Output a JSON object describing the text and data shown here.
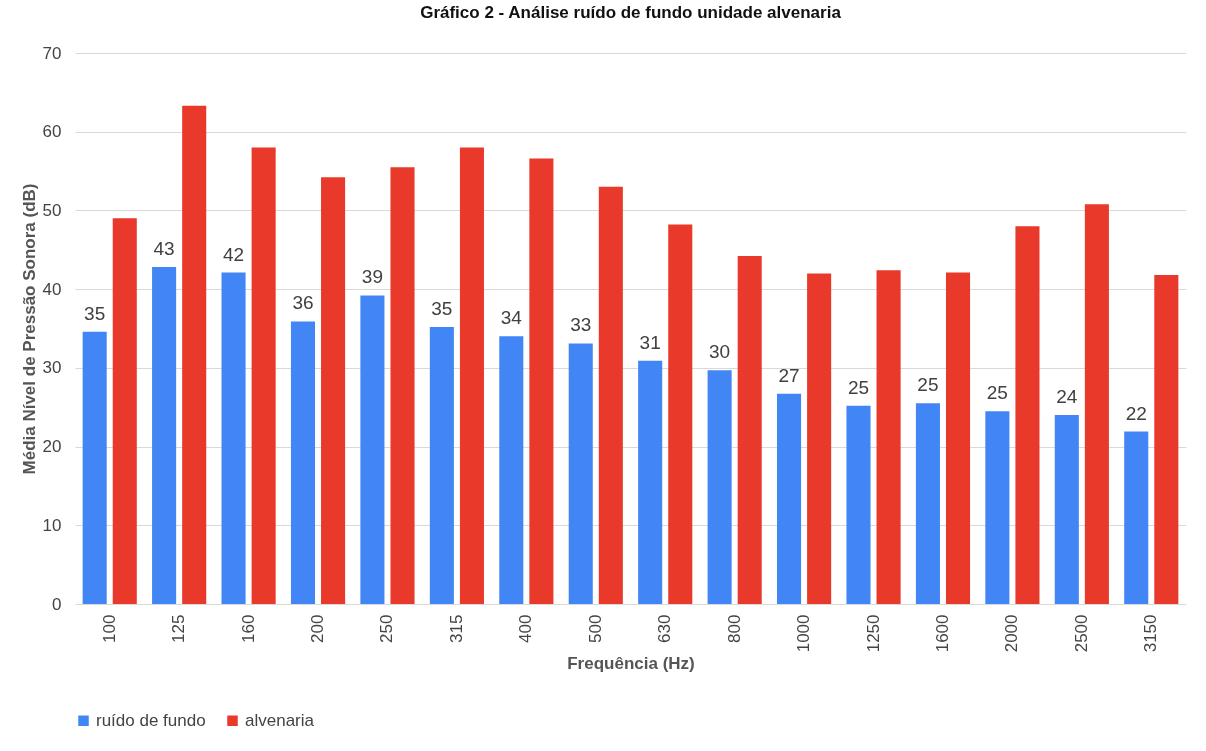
{
  "chart_data": {
    "type": "bar",
    "title": "Gráfico 2 - Análise ruído de fundo unidade alvenaria",
    "xlabel": "Frequência (Hz)",
    "ylabel": "Média Nível de Pressão Sonora (dB)",
    "categories": [
      "100",
      "125",
      "160",
      "200",
      "250",
      "315",
      "400",
      "500",
      "630",
      "800",
      "1000",
      "1250",
      "1600",
      "2000",
      "2500",
      "3150"
    ],
    "series": [
      {
        "name": "ruído de fundo",
        "color": "#4285f4",
        "values": [
          34.6,
          42.8,
          42.1,
          35.9,
          39.2,
          35.2,
          34.0,
          33.1,
          30.9,
          29.7,
          26.7,
          25.2,
          25.5,
          24.5,
          24.0,
          21.9
        ],
        "value_labels": [
          "35",
          "43",
          "42",
          "36",
          "39",
          "35",
          "34",
          "33",
          "31",
          "30",
          "27",
          "25",
          "25",
          "25",
          "24",
          "22"
        ]
      },
      {
        "name": "alvenaria",
        "color": "#e8392b",
        "values": [
          49.0,
          63.3,
          58.0,
          54.2,
          55.5,
          58.0,
          56.6,
          53.0,
          48.2,
          44.2,
          42.0,
          42.4,
          42.1,
          48.0,
          50.8,
          41.8
        ]
      }
    ],
    "ylim": [
      0,
      70
    ],
    "yticks": [
      0,
      10,
      20,
      30,
      40,
      50,
      60,
      70
    ],
    "grid": "y",
    "legend": "bottom"
  }
}
